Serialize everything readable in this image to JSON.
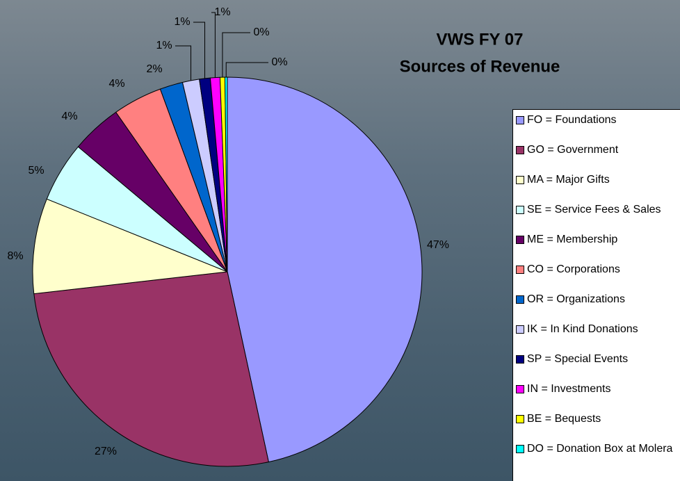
{
  "chart_data": {
    "type": "pie",
    "title": "VWS FY 07",
    "subtitle": "Sources of Revenue",
    "categories": [
      "FO = Foundations",
      "GO = Government",
      "MA = Major Gifts",
      "SE = Service Fees & Sales",
      "ME = Membership",
      "CO = Corporations",
      "OR = Organizations",
      "IK = In Kind Donations",
      "SP = Special Events",
      "IN = Investments",
      "BE = Bequests",
      "DO = Donation Box at Molera"
    ],
    "values": [
      46.6,
      26.6,
      7.9,
      5.0,
      4.2,
      4.1,
      1.9,
      1.4,
      0.9,
      0.8,
      0.4,
      0.2
    ],
    "value_labels": [
      "47%",
      "27%",
      "8%",
      "5%",
      "4%",
      "4%",
      "2%",
      "1%",
      "1%",
      "1%",
      "0%",
      "0%"
    ],
    "colors": [
      "#9999ff",
      "#993366",
      "#ffffcc",
      "#ccffff",
      "#660066",
      "#ff8080",
      "#0066cc",
      "#ccccff",
      "#000080",
      "#ff00ff",
      "#ffff00",
      "#00ffff"
    ],
    "legend": "right"
  }
}
